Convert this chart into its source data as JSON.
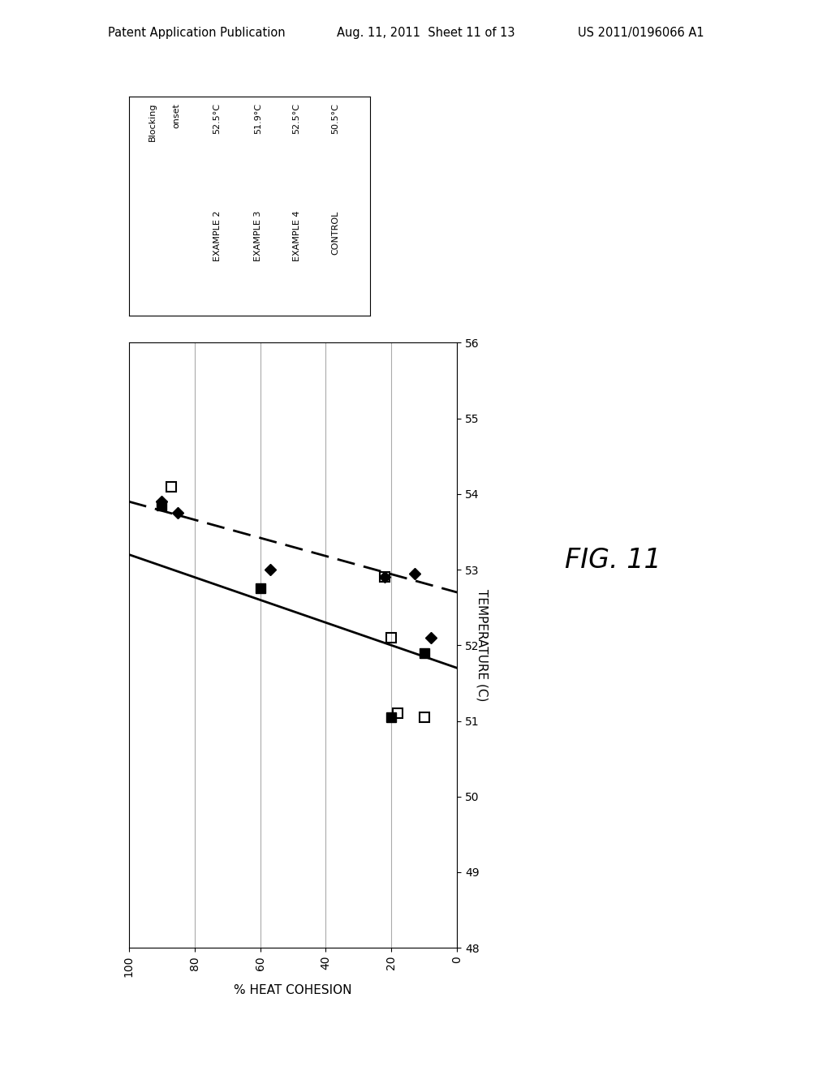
{
  "title": "FIG. 11",
  "xlabel": "% HEAT COHESION",
  "ylabel": "TEMPERATURE (C)",
  "xlim": [
    100,
    0
  ],
  "ylim": [
    48,
    56
  ],
  "yticks": [
    48,
    49,
    50,
    51,
    52,
    53,
    54,
    55,
    56
  ],
  "xticks": [
    100,
    80,
    60,
    40,
    20,
    0
  ],
  "header_text": "Patent Application Publication",
  "header_date": "Aug. 11, 2011  Sheet 11 of 13",
  "header_patent": "US 2011/0196066 A1",
  "legend_entries": [
    {
      "label": "EXAMPLE 2",
      "blocking_onset": "52.5°C"
    },
    {
      "label": "EXAMPLE 3",
      "blocking_onset": "51.9°C"
    },
    {
      "label": "EXAMPLE 4",
      "blocking_onset": "52.5°C"
    },
    {
      "label": "CONTROL",
      "blocking_onset": "50.5°C"
    }
  ],
  "series": {
    "diamonds_filled": {
      "x": [
        90,
        85,
        57,
        22,
        13,
        8
      ],
      "y": [
        53.9,
        53.75,
        53.0,
        52.9,
        52.95,
        52.1
      ],
      "marker": "D",
      "fillstyle": "full",
      "color": "black",
      "markersize": 7
    },
    "squares_open": {
      "x": [
        87,
        22,
        20,
        18,
        10
      ],
      "y": [
        54.1,
        52.9,
        52.1,
        51.1,
        51.05
      ],
      "marker": "s",
      "fillstyle": "none",
      "color": "black",
      "markersize": 8
    },
    "squares_filled": {
      "x": [
        90,
        60,
        20,
        10
      ],
      "y": [
        53.85,
        52.75,
        51.05,
        51.9
      ],
      "marker": "s",
      "fillstyle": "full",
      "color": "black",
      "markersize": 8
    }
  },
  "trendlines": {
    "solid": {
      "x": [
        100,
        0
      ],
      "y": [
        53.2,
        51.7
      ],
      "linestyle": "solid",
      "color": "black",
      "linewidth": 2.0
    },
    "dashed": {
      "x": [
        100,
        0
      ],
      "y": [
        53.9,
        52.7
      ],
      "linestyle": "dashed",
      "color": "black",
      "linewidth": 2.0
    }
  },
  "background_color": "#ffffff",
  "plot_background": "#ffffff",
  "gridlines_x": [
    80,
    60,
    40,
    20,
    0
  ],
  "gridlines_color": "#aaaaaa",
  "fig_label": "FIG. 11"
}
